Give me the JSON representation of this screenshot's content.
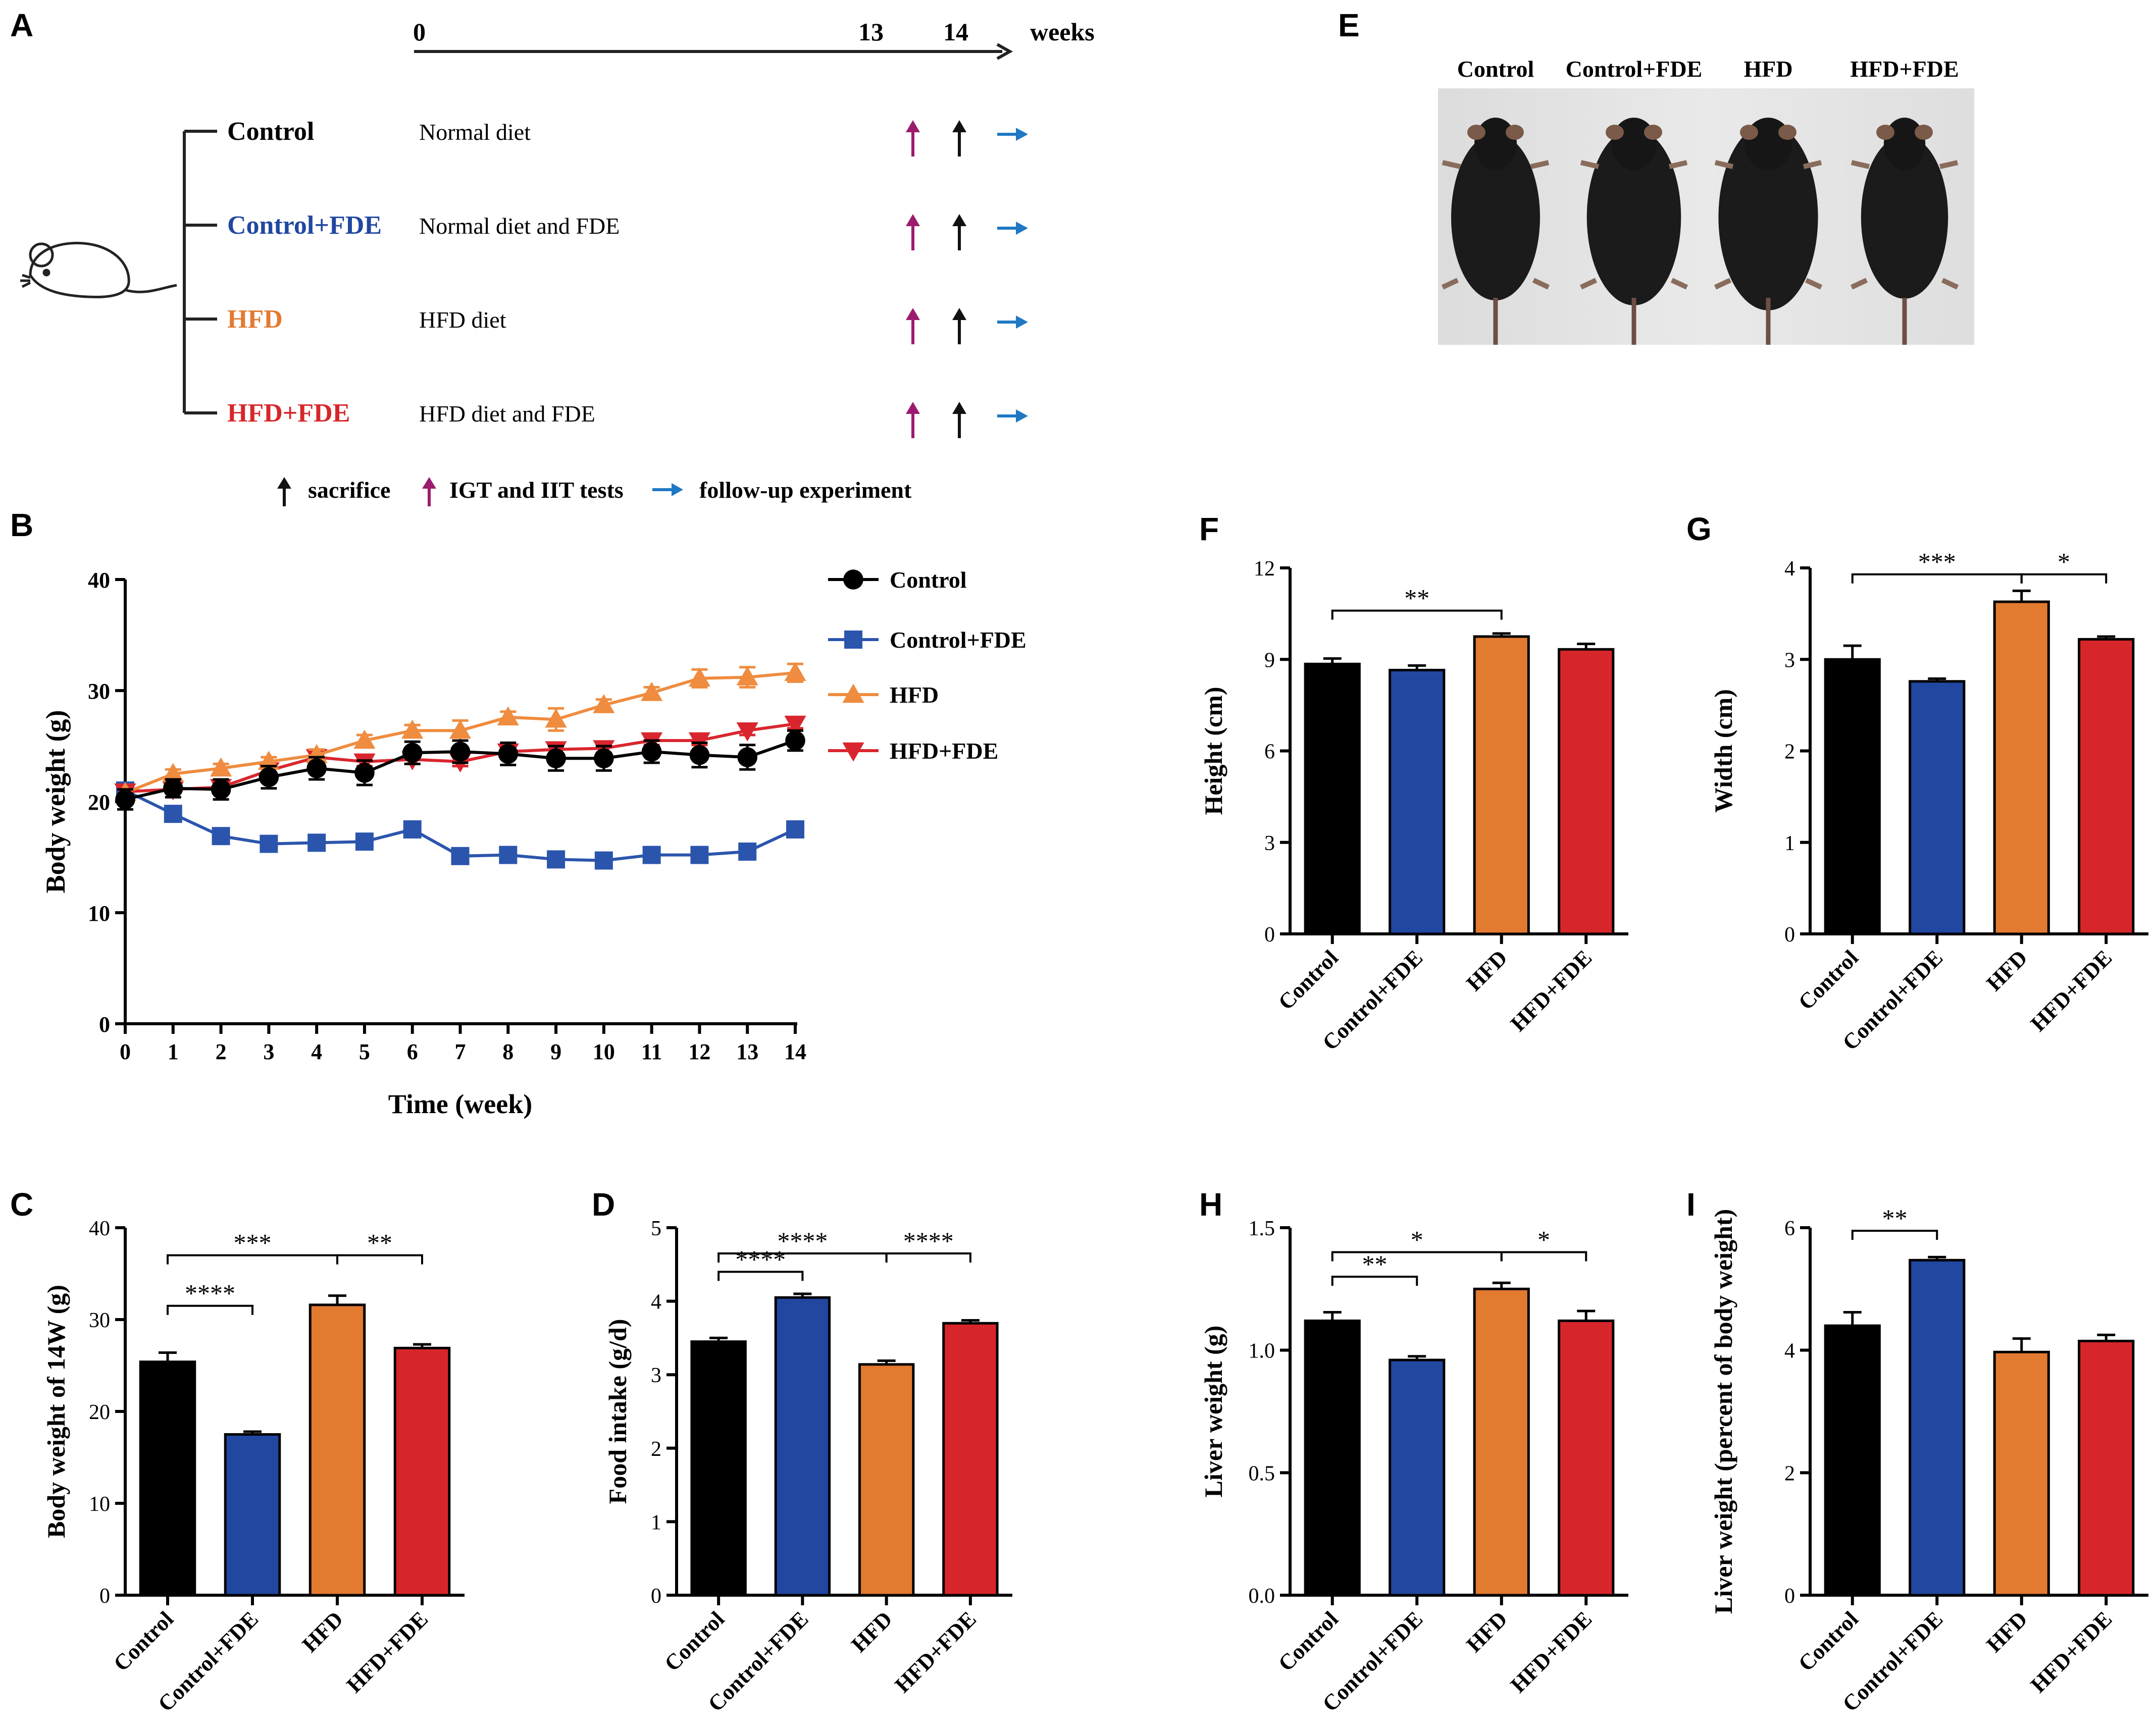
{
  "colors": {
    "Control": "#000000",
    "Control+FDE": "#2147a0",
    "HFD": "#e27a30",
    "HFD+FDE": "#d7262a",
    "line_Control+FDE": "#2b55ad",
    "line_HFD": "#ef8c3f",
    "line_HFD+FDE": "#d9262e",
    "arrow_igt": "#9b1b6e",
    "arrow_sac": "#111111",
    "arrow_follow": "#1f78c4"
  },
  "panel_labels": {
    "A": "A",
    "B": "B",
    "C": "C",
    "D": "D",
    "E": "E",
    "F": "F",
    "G": "G",
    "H": "H",
    "I": "I"
  },
  "timeline": {
    "ticks": [
      "0",
      "13",
      "14"
    ],
    "unit": "weeks",
    "groups": [
      {
        "name": "Control",
        "diet": "Normal diet"
      },
      {
        "name": "Control+FDE",
        "diet": "Normal diet and FDE"
      },
      {
        "name": "HFD",
        "diet": "HFD diet"
      },
      {
        "name": "HFD+FDE",
        "diet": "HFD diet and FDE"
      }
    ],
    "legend": {
      "sacrifice": "sacrifice",
      "igt": "IGT and IIT tests",
      "follow": "follow-up experiment"
    },
    "mouse_icon": "mouse-icon",
    "arrow_icons": [
      "up-arrow-icon",
      "right-arrow-icon"
    ]
  },
  "photo": {
    "labels": [
      "Control",
      "Control+FDE",
      "HFD",
      "HFD+FDE"
    ]
  },
  "chart_data": [
    {
      "panel": "B",
      "type": "line",
      "xlabel": "Time (week)",
      "ylabel": "Body weight (g)",
      "x": [
        0,
        1,
        2,
        3,
        4,
        5,
        6,
        7,
        8,
        9,
        10,
        11,
        12,
        13,
        14
      ],
      "xticks": [
        "0",
        "1",
        "2",
        "3",
        "4",
        "5",
        "6",
        "7",
        "8",
        "9",
        "10",
        "11",
        "12",
        "13",
        "14"
      ],
      "yticks": [
        "0",
        "10",
        "20",
        "30",
        "40"
      ],
      "ylim": [
        0,
        40
      ],
      "legend_position": "right",
      "series": [
        {
          "name": "Control",
          "marker": "circle",
          "values": [
            20.2,
            21.2,
            21.1,
            22.2,
            23.0,
            22.6,
            24.4,
            24.5,
            24.3,
            23.9,
            23.9,
            24.5,
            24.2,
            24.0,
            25.5
          ],
          "err": [
            0.9,
            0.8,
            0.9,
            1.0,
            1.0,
            1.1,
            1.0,
            1.0,
            1.0,
            1.1,
            1.1,
            1.0,
            1.1,
            1.1,
            0.9
          ]
        },
        {
          "name": "Control+FDE",
          "marker": "square",
          "values": [
            21.0,
            18.9,
            16.9,
            16.2,
            16.3,
            16.4,
            17.5,
            15.1,
            15.2,
            14.8,
            14.7,
            15.2,
            15.2,
            15.5,
            17.5
          ],
          "err": [
            0.3,
            0.3,
            0.3,
            0.3,
            0.3,
            0.3,
            0.3,
            0.3,
            0.3,
            0.3,
            0.3,
            0.3,
            0.3,
            0.3,
            0.3
          ]
        },
        {
          "name": "HFD",
          "marker": "triangle-up",
          "values": [
            20.8,
            22.5,
            23.0,
            23.6,
            24.2,
            25.5,
            26.4,
            26.4,
            27.6,
            27.4,
            28.7,
            29.8,
            31.1,
            31.2,
            31.6
          ],
          "err": [
            0.3,
            0.4,
            0.4,
            0.4,
            0.5,
            0.5,
            0.5,
            0.9,
            0.5,
            1.0,
            0.5,
            0.5,
            0.8,
            0.9,
            0.8
          ]
        },
        {
          "name": "HFD+FDE",
          "marker": "triangle-down",
          "values": [
            20.9,
            21.1,
            21.3,
            22.8,
            24.0,
            23.6,
            23.8,
            23.6,
            24.5,
            24.7,
            24.8,
            25.5,
            25.5,
            26.4,
            27.0
          ],
          "err": [
            0.3,
            0.3,
            0.3,
            0.4,
            0.4,
            0.4,
            0.4,
            0.4,
            0.4,
            0.4,
            0.4,
            0.4,
            0.4,
            0.4,
            0.4
          ]
        }
      ]
    },
    {
      "panel": "C",
      "type": "bar",
      "ylabel": "Body weight of 14W (g)",
      "categories": [
        "Control",
        "Control+FDE",
        "HFD",
        "HFD+FDE"
      ],
      "values": [
        25.4,
        17.5,
        31.6,
        26.9
      ],
      "err": [
        1.0,
        0.3,
        1.0,
        0.4
      ],
      "ylim": [
        0,
        40
      ],
      "yticks": [
        "0",
        "10",
        "20",
        "30",
        "40"
      ],
      "significance": [
        {
          "from": 0,
          "to": 1,
          "label": "****",
          "y": 31.5
        },
        {
          "from": 0,
          "to": 2,
          "label": "***",
          "y": 37.0
        },
        {
          "from": 2,
          "to": 3,
          "label": "**",
          "y": 37.0
        }
      ]
    },
    {
      "panel": "D",
      "type": "bar",
      "ylabel": "Food intake (g/d)",
      "categories": [
        "Control",
        "Control+FDE",
        "HFD",
        "HFD+FDE"
      ],
      "values": [
        3.45,
        4.05,
        3.14,
        3.7
      ],
      "err": [
        0.05,
        0.05,
        0.05,
        0.04
      ],
      "ylim": [
        0,
        5
      ],
      "yticks": [
        "0",
        "1",
        "2",
        "3",
        "4",
        "5"
      ],
      "significance": [
        {
          "from": 0,
          "to": 1,
          "label": "****",
          "y": 4.4
        },
        {
          "from": 0,
          "to": 2,
          "label": "****",
          "y": 4.65
        },
        {
          "from": 2,
          "to": 3,
          "label": "****",
          "y": 4.65
        }
      ]
    },
    {
      "panel": "F",
      "type": "bar",
      "ylabel": "Height (cm)",
      "categories": [
        "Control",
        "Control+FDE",
        "HFD",
        "HFD+FDE"
      ],
      "values": [
        8.85,
        8.65,
        9.75,
        9.33
      ],
      "err": [
        0.18,
        0.15,
        0.1,
        0.18
      ],
      "ylim": [
        0,
        12
      ],
      "yticks": [
        "0",
        "3",
        "6",
        "9",
        "12"
      ],
      "significance": [
        {
          "from": 0,
          "to": 2,
          "label": "**",
          "y": 10.6
        }
      ]
    },
    {
      "panel": "G",
      "type": "bar",
      "ylabel": "Width (cm)",
      "categories": [
        "Control",
        "Control+FDE",
        "HFD",
        "HFD+FDE"
      ],
      "values": [
        3.0,
        2.76,
        3.63,
        3.22
      ],
      "err": [
        0.15,
        0.03,
        0.12,
        0.03
      ],
      "ylim": [
        0,
        4
      ],
      "yticks": [
        "0",
        "1",
        "2",
        "3",
        "4"
      ],
      "significance": [
        {
          "from": 0,
          "to": 2,
          "label": "***",
          "y": 3.93
        },
        {
          "from": 2,
          "to": 3,
          "label": "*",
          "y": 3.93
        }
      ]
    },
    {
      "panel": "H",
      "type": "bar",
      "ylabel": "Liver weight (g)",
      "categories": [
        "Control",
        "Control+FDE",
        "HFD",
        "HFD+FDE"
      ],
      "values": [
        1.12,
        0.96,
        1.25,
        1.12
      ],
      "err": [
        0.035,
        0.015,
        0.025,
        0.04
      ],
      "ylim": [
        0,
        1.5
      ],
      "yticks": [
        "0.0",
        "0.5",
        "1.0",
        "1.5"
      ],
      "significance": [
        {
          "from": 0,
          "to": 1,
          "label": "**",
          "y": 1.3
        },
        {
          "from": 0,
          "to": 2,
          "label": "*",
          "y": 1.4
        },
        {
          "from": 2,
          "to": 3,
          "label": "*",
          "y": 1.4
        }
      ]
    },
    {
      "panel": "I",
      "type": "bar",
      "ylabel": "Liver weight (percent of body weight)",
      "categories": [
        "Control",
        "Control+FDE",
        "HFD",
        "HFD+FDE"
      ],
      "values": [
        4.4,
        5.47,
        3.97,
        4.15
      ],
      "err": [
        0.22,
        0.05,
        0.22,
        0.1
      ],
      "ylim": [
        0,
        6
      ],
      "yticks": [
        "0",
        "2",
        "4",
        "6"
      ],
      "significance": [
        {
          "from": 0,
          "to": 1,
          "label": "**",
          "y": 5.95
        }
      ]
    }
  ]
}
